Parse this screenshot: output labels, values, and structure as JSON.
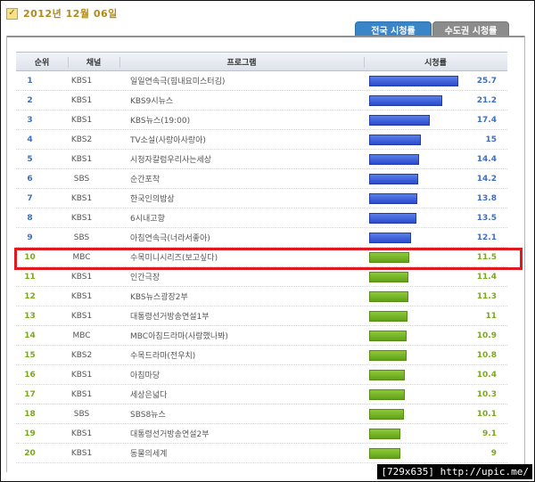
{
  "date": {
    "icon": "calendar-check-icon",
    "text": "2012년 12월 06일"
  },
  "tabs": [
    {
      "label": "전국 시청률",
      "active": true
    },
    {
      "label": "수도권 시청률",
      "active": false
    }
  ],
  "table": {
    "headers": {
      "rank": "순위",
      "channel": "채널",
      "program": "프로그램",
      "rating": "시청률"
    },
    "rows": [
      {
        "rank": "1",
        "channel": "KBS1",
        "program": "일일연속극(힘내요미스터김)",
        "rating": "25.7"
      },
      {
        "rank": "2",
        "channel": "KBS1",
        "program": "KBS9시뉴스",
        "rating": "21.2"
      },
      {
        "rank": "3",
        "channel": "KBS1",
        "program": "KBS뉴스(19:00)",
        "rating": "17.4"
      },
      {
        "rank": "4",
        "channel": "KBS2",
        "program": "TV소설(사랑아사랑아)",
        "rating": "15"
      },
      {
        "rank": "5",
        "channel": "KBS1",
        "program": "시청자칼럼우리사는세상",
        "rating": "14.4"
      },
      {
        "rank": "6",
        "channel": "SBS",
        "program": "순간포착",
        "rating": "14.2"
      },
      {
        "rank": "7",
        "channel": "KBS1",
        "program": "한국인의밥상",
        "rating": "13.8"
      },
      {
        "rank": "8",
        "channel": "KBS1",
        "program": "6시내고향",
        "rating": "13.5"
      },
      {
        "rank": "9",
        "channel": "SBS",
        "program": "아침연속극(너라서좋아)",
        "rating": "12.1"
      },
      {
        "rank": "10",
        "channel": "MBC",
        "program": "수목미니시리즈(보고싶다)",
        "rating": "11.5"
      },
      {
        "rank": "11",
        "channel": "KBS1",
        "program": "인간극장",
        "rating": "11.4"
      },
      {
        "rank": "12",
        "channel": "KBS1",
        "program": "KBS뉴스광장2부",
        "rating": "11.3"
      },
      {
        "rank": "13",
        "channel": "KBS1",
        "program": "대통령선거방송연설1부",
        "rating": "11"
      },
      {
        "rank": "14",
        "channel": "MBC",
        "program": "MBC아침드라마(사랑했나봐)",
        "rating": "10.9"
      },
      {
        "rank": "15",
        "channel": "KBS2",
        "program": "수목드라마(전우치)",
        "rating": "10.8"
      },
      {
        "rank": "16",
        "channel": "KBS1",
        "program": "아침마당",
        "rating": "10.4"
      },
      {
        "rank": "17",
        "channel": "KBS1",
        "program": "세상은넓다",
        "rating": "10.3"
      },
      {
        "rank": "18",
        "channel": "SBS",
        "program": "SBS8뉴스",
        "rating": "10.1"
      },
      {
        "rank": "19",
        "channel": "KBS1",
        "program": "대통령선거방송연설2부",
        "rating": "9.1"
      },
      {
        "rank": "20",
        "channel": "KBS1",
        "program": "동물의세계",
        "rating": "9"
      }
    ],
    "colors": {
      "top": "#2a4bd1",
      "rest": "#62a218",
      "highlight": "#e0181f"
    },
    "highlighted_rank": "10"
  },
  "watermark": "[729x635] http://upic.me/"
}
